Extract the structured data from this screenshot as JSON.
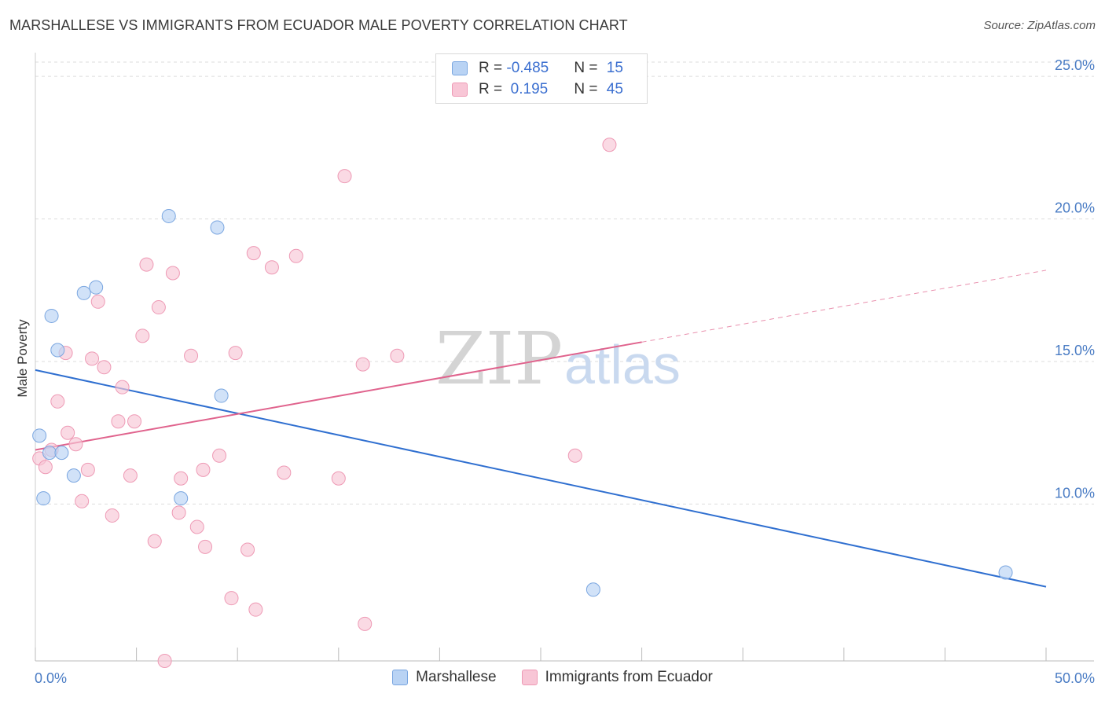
{
  "title": "MARSHALLESE VS IMMIGRANTS FROM ECUADOR MALE POVERTY CORRELATION CHART",
  "source": "Source: ZipAtlas.com",
  "watermark": {
    "zip": "ZIP",
    "atlas": "atlas"
  },
  "colors": {
    "blue_fill": "#b9d3f4",
    "blue_stroke": "#7aa6e0",
    "blue_line": "#2f6fd0",
    "pink_fill": "#f8c6d6",
    "pink_stroke": "#ee9ab5",
    "pink_line": "#e0638d",
    "tick_text": "#4a7cc4",
    "grid": "#dddddd"
  },
  "legend_top": {
    "rows": [
      {
        "series": "Marshallese",
        "r_label": "R = ",
        "r_value": "-0.485",
        "n_label": "N = ",
        "n_value": "15"
      },
      {
        "series": "Immigrants from Ecuador",
        "r_label": "R = ",
        "r_value": " 0.195",
        "n_label": "N = ",
        "n_value": "45"
      }
    ]
  },
  "chart_data": {
    "type": "scatter",
    "title": "MARSHALLESE VS IMMIGRANTS FROM ECUADOR MALE POVERTY CORRELATION CHART",
    "xlabel": "",
    "ylabel": "Male Poverty",
    "xlim": [
      0,
      50
    ],
    "ylim": [
      4.5,
      25.5
    ],
    "x_tick_labels": {
      "left": "0.0%",
      "right": "50.0%"
    },
    "y_ticks": [
      {
        "value": 10,
        "label": "10.0%"
      },
      {
        "value": 15,
        "label": "15.0%"
      },
      {
        "value": 20,
        "label": "20.0%"
      },
      {
        "value": 25,
        "label": "25.0%"
      }
    ],
    "grid": "horizontal dashed",
    "legend_placement": "bottom-center",
    "series": [
      {
        "name": "Marshallese",
        "color": "#b9d3f4",
        "points": [
          {
            "x": 0.2,
            "y": 12.4
          },
          {
            "x": 0.4,
            "y": 10.2
          },
          {
            "x": 0.7,
            "y": 11.8
          },
          {
            "x": 0.8,
            "y": 16.6
          },
          {
            "x": 1.1,
            "y": 15.4
          },
          {
            "x": 1.3,
            "y": 11.8
          },
          {
            "x": 1.9,
            "y": 11.0
          },
          {
            "x": 2.4,
            "y": 17.4
          },
          {
            "x": 3.0,
            "y": 17.6
          },
          {
            "x": 6.6,
            "y": 20.1
          },
          {
            "x": 7.2,
            "y": 10.2
          },
          {
            "x": 9.0,
            "y": 19.7
          },
          {
            "x": 9.2,
            "y": 13.8
          },
          {
            "x": 27.6,
            "y": 7.0
          },
          {
            "x": 48.0,
            "y": 7.6
          }
        ],
        "trend": {
          "x0": 0,
          "y0": 14.7,
          "x1": 50,
          "y1": 7.1,
          "dashed_from": null
        }
      },
      {
        "name": "Immigrants from Ecuador",
        "color": "#f8c6d6",
        "points": [
          {
            "x": 0.2,
            "y": 11.6
          },
          {
            "x": 0.5,
            "y": 11.3
          },
          {
            "x": 0.8,
            "y": 11.9
          },
          {
            "x": 1.1,
            "y": 13.6
          },
          {
            "x": 1.5,
            "y": 15.3
          },
          {
            "x": 1.6,
            "y": 12.5
          },
          {
            "x": 2.0,
            "y": 12.1
          },
          {
            "x": 2.3,
            "y": 10.1
          },
          {
            "x": 2.6,
            "y": 11.2
          },
          {
            "x": 2.8,
            "y": 15.1
          },
          {
            "x": 3.1,
            "y": 17.1
          },
          {
            "x": 3.4,
            "y": 14.8
          },
          {
            "x": 3.8,
            "y": 9.6
          },
          {
            "x": 4.1,
            "y": 12.9
          },
          {
            "x": 4.3,
            "y": 14.1
          },
          {
            "x": 4.7,
            "y": 11.0
          },
          {
            "x": 4.9,
            "y": 12.9
          },
          {
            "x": 5.3,
            "y": 15.9
          },
          {
            "x": 5.5,
            "y": 18.4
          },
          {
            "x": 5.9,
            "y": 8.7
          },
          {
            "x": 6.1,
            "y": 16.9
          },
          {
            "x": 6.4,
            "y": 4.5
          },
          {
            "x": 6.8,
            "y": 18.1
          },
          {
            "x": 7.1,
            "y": 9.7
          },
          {
            "x": 7.2,
            "y": 10.9
          },
          {
            "x": 7.7,
            "y": 15.2
          },
          {
            "x": 8.0,
            "y": 9.2
          },
          {
            "x": 8.3,
            "y": 11.2
          },
          {
            "x": 8.4,
            "y": 8.5
          },
          {
            "x": 9.1,
            "y": 11.7
          },
          {
            "x": 9.7,
            "y": 6.7
          },
          {
            "x": 9.9,
            "y": 15.3
          },
          {
            "x": 10.5,
            "y": 8.4
          },
          {
            "x": 10.8,
            "y": 18.8
          },
          {
            "x": 10.9,
            "y": 6.3
          },
          {
            "x": 11.7,
            "y": 18.3
          },
          {
            "x": 12.3,
            "y": 11.1
          },
          {
            "x": 12.9,
            "y": 18.7
          },
          {
            "x": 15.0,
            "y": 10.9
          },
          {
            "x": 15.3,
            "y": 21.5
          },
          {
            "x": 16.2,
            "y": 14.9
          },
          {
            "x": 16.3,
            "y": 5.8
          },
          {
            "x": 17.9,
            "y": 15.2
          },
          {
            "x": 26.7,
            "y": 11.7
          },
          {
            "x": 28.4,
            "y": 22.6
          }
        ],
        "trend": {
          "x0": 0,
          "y0": 11.9,
          "x1": 50,
          "y1": 18.2,
          "dashed_from": 30
        }
      }
    ]
  }
}
